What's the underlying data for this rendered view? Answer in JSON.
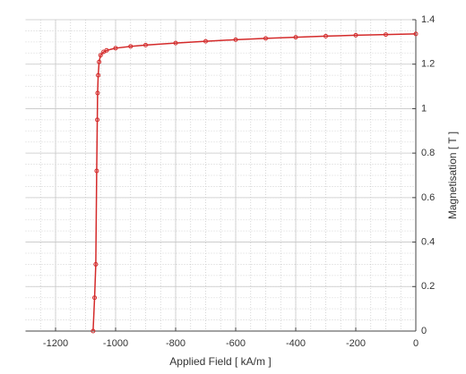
{
  "chart_data": {
    "type": "line",
    "x_label": "Applied Field [ kA/m ]",
    "y_label": "Magnetisation [ T ]",
    "xlim": [
      -1300,
      0
    ],
    "xticks": [
      -1200,
      -1000,
      -800,
      -600,
      -400,
      -200,
      0
    ],
    "ylim": [
      0,
      1.4
    ],
    "yticks": [
      0,
      0.2,
      0.4,
      0.6,
      0.8,
      1,
      1.2,
      1.4
    ],
    "grid": true,
    "minor_grid": true,
    "y_axis_side": "right",
    "series": [
      {
        "color": "#d42a2a",
        "x": [
          -1075,
          -1070,
          -1066,
          -1063,
          -1061,
          -1060,
          -1058,
          -1055,
          -1050,
          -1040,
          -1030,
          -1000,
          -950,
          -900,
          -800,
          -700,
          -600,
          -500,
          -400,
          -300,
          -200,
          -100,
          0
        ],
        "y": [
          0,
          0.15,
          0.3,
          0.72,
          0.95,
          1.07,
          1.15,
          1.21,
          1.24,
          1.255,
          1.262,
          1.272,
          1.28,
          1.286,
          1.295,
          1.303,
          1.31,
          1.316,
          1.321,
          1.326,
          1.33,
          1.333,
          1.336
        ]
      }
    ]
  }
}
